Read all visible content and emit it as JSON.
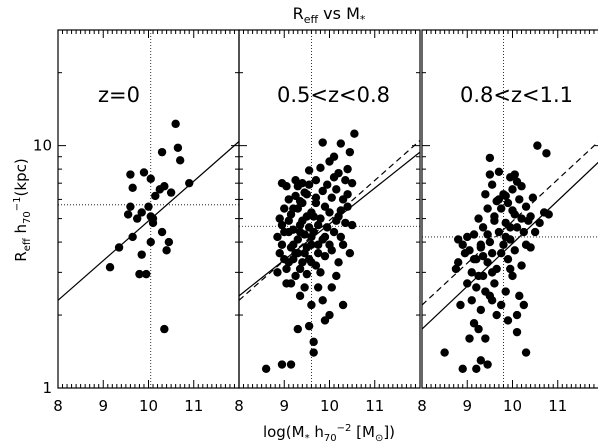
{
  "chart_data": {
    "type": "scatter",
    "title": "R_eff vs M_*",
    "title_parts": {
      "main": "R",
      "sub1": "eff",
      "mid": " vs M",
      "sub2": "*"
    },
    "xlabel": "log(M_* h_70^-2 [M_sun])",
    "xlabel_parts": {
      "a": "log(M",
      "b": "*",
      "c": " h",
      "d": "70",
      "e": "−2",
      "f": " [M",
      "g": "⊙",
      "h": "])"
    },
    "ylabel": "R_eff h_70^-1 (kpc)",
    "ylabel_parts": {
      "a": "R",
      "b": "eff",
      "c": " h",
      "d": "70",
      "e": "−1",
      "f": "(kpc)"
    },
    "xlim": [
      8,
      12
    ],
    "ylim": [
      1,
      30
    ],
    "yscale": "log",
    "x_ticks": [
      8,
      9,
      10,
      11
    ],
    "x_tick_labels": [
      "8",
      "9",
      "10",
      "11"
    ],
    "y_ticks": [
      1,
      10
    ],
    "y_tick_labels": [
      "1",
      "10"
    ],
    "panels": [
      {
        "label": "z=0",
        "ref_x": 10.05,
        "ref_y": 5.7,
        "solid_fit": {
          "y_at_8": 2.3,
          "y_at_12": 10.4
        },
        "dashed_fit": null,
        "points": [
          [
            9.15,
            3.15
          ],
          [
            9.35,
            3.8
          ],
          [
            9.55,
            5.2
          ],
          [
            9.6,
            5.6
          ],
          [
            9.65,
            4.2
          ],
          [
            9.65,
            6.7
          ],
          [
            9.6,
            7.6
          ],
          [
            9.85,
            5.3
          ],
          [
            9.75,
            5.0
          ],
          [
            9.85,
            3.55
          ],
          [
            9.8,
            2.95
          ],
          [
            9.95,
            2.95
          ],
          [
            10.05,
            5.1
          ],
          [
            10.1,
            4.8
          ],
          [
            10.05,
            4.0
          ],
          [
            10.1,
            5.0
          ],
          [
            10.0,
            5.6
          ],
          [
            10.05,
            7.3
          ],
          [
            9.9,
            7.75
          ],
          [
            10.15,
            6.2
          ],
          [
            10.25,
            6.6
          ],
          [
            10.3,
            4.4
          ],
          [
            10.35,
            6.8
          ],
          [
            10.3,
            9.4
          ],
          [
            10.45,
            4.0
          ],
          [
            10.6,
            12.3
          ],
          [
            10.65,
            9.8
          ],
          [
            10.7,
            8.7
          ],
          [
            10.9,
            7.0
          ],
          [
            10.35,
            1.75
          ],
          [
            10.4,
            3.7
          ],
          [
            10.5,
            6.4
          ]
        ]
      },
      {
        "label": "0.5<z<0.8",
        "ref_x": 9.6,
        "ref_y": 4.65,
        "solid_fit": {
          "y_at_8": 2.4,
          "y_at_12": 9.4
        },
        "dashed_fit": {
          "y_at_8": 2.3,
          "y_at_12": 10.5
        },
        "points": [
          [
            8.6,
            1.2
          ],
          [
            8.85,
            3.0
          ],
          [
            8.85,
            4.2
          ],
          [
            8.9,
            5.0
          ],
          [
            8.9,
            3.6
          ],
          [
            8.95,
            3.9
          ],
          [
            8.95,
            1.25
          ],
          [
            9.0,
            5.5
          ],
          [
            9.0,
            4.4
          ],
          [
            9.05,
            3.1
          ],
          [
            9.05,
            2.7
          ],
          [
            9.1,
            4.9
          ],
          [
            9.1,
            6.0
          ],
          [
            9.1,
            3.3
          ],
          [
            9.15,
            1.25
          ],
          [
            9.15,
            5.2
          ],
          [
            9.15,
            3.8
          ],
          [
            9.2,
            4.5
          ],
          [
            9.2,
            3.4
          ],
          [
            9.25,
            6.2
          ],
          [
            9.25,
            2.9
          ],
          [
            9.25,
            3.6
          ],
          [
            9.3,
            4.1
          ],
          [
            9.3,
            6.8
          ],
          [
            9.3,
            5.5
          ],
          [
            9.35,
            2.4
          ],
          [
            9.35,
            3.1
          ],
          [
            9.35,
            4.7
          ],
          [
            9.4,
            5.8
          ],
          [
            9.4,
            7.0
          ],
          [
            9.4,
            3.3
          ],
          [
            9.45,
            4.3
          ],
          [
            9.45,
            2.6
          ],
          [
            9.45,
            6.4
          ],
          [
            9.5,
            3.8
          ],
          [
            9.5,
            5.1
          ],
          [
            9.5,
            2.95
          ],
          [
            9.55,
            4.6
          ],
          [
            9.55,
            3.4
          ],
          [
            9.55,
            6.9
          ],
          [
            9.6,
            2.2
          ],
          [
            9.6,
            3.9
          ],
          [
            9.6,
            5.3
          ],
          [
            9.65,
            4.4
          ],
          [
            9.65,
            1.55
          ],
          [
            9.65,
            1.4
          ],
          [
            9.7,
            3.2
          ],
          [
            9.7,
            6.1
          ],
          [
            9.7,
            7.2
          ],
          [
            9.75,
            4.7
          ],
          [
            9.75,
            3.6
          ],
          [
            9.75,
            2.6
          ],
          [
            9.8,
            5.0
          ],
          [
            9.8,
            3.0
          ],
          [
            9.85,
            6.5
          ],
          [
            9.85,
            4.1
          ],
          [
            9.85,
            2.3
          ],
          [
            9.9,
            5.6
          ],
          [
            9.9,
            3.5
          ],
          [
            9.95,
            4.6
          ],
          [
            9.95,
            6.9
          ],
          [
            10.0,
            3.9
          ],
          [
            10.0,
            5.3
          ],
          [
            10.05,
            6.1
          ],
          [
            10.05,
            2.6
          ],
          [
            10.1,
            4.4
          ],
          [
            10.1,
            7.4
          ],
          [
            10.15,
            6.6
          ],
          [
            10.2,
            5.1
          ],
          [
            10.2,
            3.3
          ],
          [
            10.2,
            7.7
          ],
          [
            10.25,
            4.2
          ],
          [
            10.3,
            6.0
          ],
          [
            10.3,
            2.2
          ],
          [
            10.35,
            4.8
          ],
          [
            10.35,
            7.2
          ],
          [
            10.4,
            8.0
          ],
          [
            10.4,
            5.6
          ],
          [
            10.45,
            9.4
          ],
          [
            10.45,
            3.6
          ],
          [
            9.85,
            10.3
          ],
          [
            10.25,
            10.2
          ],
          [
            10.55,
            11.2
          ],
          [
            10.5,
            7.0
          ],
          [
            10.5,
            4.7
          ],
          [
            10.15,
            2.9
          ],
          [
            10.0,
            2.0
          ],
          [
            9.9,
            1.9
          ],
          [
            9.55,
            1.8
          ],
          [
            9.3,
            1.75
          ],
          [
            9.15,
            2.7
          ],
          [
            9.0,
            3.4
          ],
          [
            8.95,
            4.7
          ],
          [
            9.35,
            5.9
          ],
          [
            9.55,
            7.9
          ],
          [
            9.8,
            8.1
          ],
          [
            10.0,
            8.6
          ],
          [
            10.1,
            9.0
          ],
          [
            9.7,
            5.8
          ],
          [
            9.6,
            4.2
          ],
          [
            9.4,
            4.9
          ],
          [
            9.2,
            5.5
          ],
          [
            9.05,
            6.8
          ],
          [
            8.95,
            7.0
          ],
          [
            9.25,
            7.2
          ],
          [
            9.5,
            6.3
          ],
          [
            9.75,
            3.9
          ],
          [
            10.05,
            3.7
          ],
          [
            10.15,
            4.9
          ],
          [
            10.3,
            3.9
          ],
          [
            9.45,
            3.6
          ],
          [
            9.35,
            4.4
          ],
          [
            9.9,
            4.2
          ],
          [
            10.25,
            5.4
          ],
          [
            10.4,
            6.3
          ],
          [
            9.65,
            5.1
          ],
          [
            9.2,
            3.9
          ],
          [
            9.1,
            4.4
          ],
          [
            9.3,
            3.6
          ],
          [
            9.6,
            3.3
          ]
        ]
      },
      {
        "label": "0.8<z<1.1",
        "ref_x": 9.8,
        "ref_y": 4.2,
        "solid_fit": {
          "y_at_8": 1.75,
          "y_at_12": 8.9
        },
        "dashed_fit": {
          "y_at_8": 2.2,
          "y_at_12": 10.8
        },
        "points": [
          [
            8.5,
            1.4
          ],
          [
            8.75,
            3.1
          ],
          [
            8.8,
            4.1
          ],
          [
            8.85,
            2.2
          ],
          [
            8.9,
            1.2
          ],
          [
            8.95,
            3.6
          ],
          [
            9.0,
            2.7
          ],
          [
            9.0,
            4.2
          ],
          [
            9.05,
            1.6
          ],
          [
            9.1,
            3.0
          ],
          [
            9.1,
            2.3
          ],
          [
            9.15,
            4.3
          ],
          [
            9.15,
            1.85
          ],
          [
            9.2,
            3.4
          ],
          [
            9.2,
            2.6
          ],
          [
            9.25,
            1.75
          ],
          [
            9.25,
            5.0
          ],
          [
            9.3,
            2.1
          ],
          [
            9.3,
            3.8
          ],
          [
            9.35,
            4.6
          ],
          [
            9.35,
            2.9
          ],
          [
            9.4,
            6.3
          ],
          [
            9.4,
            1.6
          ],
          [
            9.45,
            3.3
          ],
          [
            9.45,
            5.5
          ],
          [
            9.5,
            2.4
          ],
          [
            9.5,
            4.0
          ],
          [
            9.5,
            8.9
          ],
          [
            9.55,
            3.6
          ],
          [
            9.55,
            6.9
          ],
          [
            9.6,
            2.7
          ],
          [
            9.6,
            4.9
          ],
          [
            9.65,
            5.9
          ],
          [
            9.65,
            3.1
          ],
          [
            9.7,
            7.8
          ],
          [
            9.7,
            4.4
          ],
          [
            9.75,
            2.2
          ],
          [
            9.75,
            5.5
          ],
          [
            9.8,
            3.9
          ],
          [
            9.8,
            6.3
          ],
          [
            9.85,
            2.5
          ],
          [
            9.85,
            4.8
          ],
          [
            9.9,
            3.4
          ],
          [
            9.9,
            5.8
          ],
          [
            9.95,
            7.4
          ],
          [
            9.95,
            4.1
          ],
          [
            10.0,
            2.9
          ],
          [
            10.0,
            6.6
          ],
          [
            10.05,
            3.7
          ],
          [
            10.05,
            5.2
          ],
          [
            10.1,
            7.1
          ],
          [
            10.1,
            4.6
          ],
          [
            10.15,
            2.4
          ],
          [
            10.15,
            6.0
          ],
          [
            10.2,
            5.0
          ],
          [
            10.2,
            3.2
          ],
          [
            10.25,
            4.4
          ],
          [
            10.3,
            5.6
          ],
          [
            10.3,
            1.4
          ],
          [
            10.35,
            4.9
          ],
          [
            10.4,
            3.8
          ],
          [
            10.45,
            6.1
          ],
          [
            10.5,
            4.4
          ],
          [
            10.55,
            10.0
          ],
          [
            10.6,
            4.8
          ],
          [
            10.7,
            5.3
          ],
          [
            10.8,
            5.2
          ],
          [
            10.75,
            9.3
          ],
          [
            9.3,
            1.3
          ],
          [
            9.45,
            1.25
          ],
          [
            9.2,
            1.2
          ],
          [
            8.9,
            3.9
          ],
          [
            8.8,
            3.3
          ],
          [
            9.05,
            3.7
          ],
          [
            9.35,
            3.5
          ],
          [
            9.55,
            3.0
          ],
          [
            9.75,
            3.6
          ],
          [
            9.95,
            3.1
          ],
          [
            10.1,
            2.0
          ],
          [
            10.25,
            2.2
          ],
          [
            10.1,
            1.7
          ],
          [
            9.9,
            1.9
          ],
          [
            9.65,
            2.0
          ],
          [
            9.4,
            2.5
          ],
          [
            9.25,
            2.9
          ],
          [
            9.6,
            5.1
          ],
          [
            9.85,
            6.2
          ],
          [
            10.0,
            5.4
          ],
          [
            10.2,
            6.8
          ],
          [
            10.05,
            7.6
          ],
          [
            9.5,
            7.6
          ],
          [
            9.7,
            6.0
          ],
          [
            9.45,
            4.3
          ],
          [
            9.3,
            3.9
          ],
          [
            9.15,
            3.4
          ],
          [
            9.85,
            4.2
          ],
          [
            10.3,
            3.9
          ],
          [
            10.4,
            5.1
          ],
          [
            9.95,
            4.6
          ],
          [
            9.55,
            2.3
          ]
        ]
      }
    ]
  }
}
